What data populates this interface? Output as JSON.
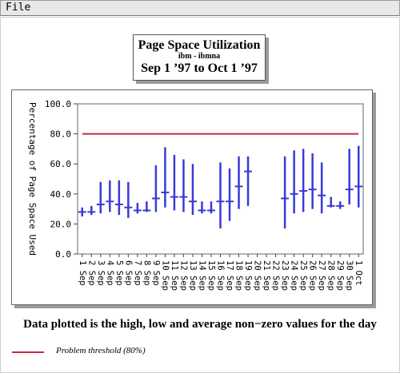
{
  "menu": {
    "file_label": "File"
  },
  "title": {
    "main": "Page Space Utilization",
    "sub": "ibm - ibmna",
    "range": "Sep 1 ’97  to  Oct 1 ’97"
  },
  "footnote": "Data plotted is the high, low and average non−zero values for the day",
  "legend": {
    "threshold_label": "Problem threshold (80%)"
  },
  "colors": {
    "threshold": "#c8283e",
    "series": "#3a3ad8",
    "grid": "#bdbdbd"
  },
  "chart_data": {
    "type": "line",
    "ylabel": "Percentage of Page Space Used",
    "xlabel": "",
    "ylim": [
      0,
      100
    ],
    "yticks": [
      "0.0",
      "20.0",
      "40.0",
      "60.0",
      "80.0",
      "100.0"
    ],
    "grid": true,
    "threshold": 80,
    "threshold_name": "Problem threshold (80%)",
    "categories": [
      "1 Sep",
      "2 Sep",
      "3 Sep",
      "4 Sep",
      "5 Sep",
      "6 Sep",
      "7 Sep",
      "8 Sep",
      "9 Sep",
      "10 Sep",
      "11 Sep",
      "12 Sep",
      "13 Sep",
      "14 Sep",
      "15 Sep",
      "16 Sep",
      "17 Sep",
      "18 Sep",
      "19 Sep",
      "20 Sep",
      "21 Sep",
      "22 Sep",
      "23 Sep",
      "24 Sep",
      "25 Sep",
      "26 Sep",
      "27 Sep",
      "28 Sep",
      "29 Sep",
      "30 Sep",
      "1 Oct"
    ],
    "series": [
      {
        "name": "high",
        "values": [
          31,
          32,
          48,
          49,
          49,
          48,
          34,
          35,
          59,
          71,
          66,
          63,
          60,
          35,
          35,
          61,
          57,
          65,
          65,
          null,
          null,
          null,
          65,
          69,
          70,
          67,
          61,
          38,
          35,
          70,
          72
        ]
      },
      {
        "name": "low",
        "values": [
          25,
          26,
          27,
          28,
          26,
          24,
          27,
          28,
          28,
          31,
          29,
          28,
          26,
          27,
          27,
          17,
          22,
          30,
          32,
          null,
          null,
          null,
          17,
          27,
          28,
          30,
          27,
          31,
          30,
          33,
          31
        ]
      },
      {
        "name": "average",
        "values": [
          28,
          28,
          33,
          35,
          33,
          31,
          29,
          29,
          37,
          41,
          38,
          38,
          35,
          29,
          29,
          35,
          35,
          45,
          55,
          null,
          null,
          null,
          37,
          40,
          42,
          43,
          39,
          32,
          32,
          43,
          45
        ]
      }
    ]
  }
}
